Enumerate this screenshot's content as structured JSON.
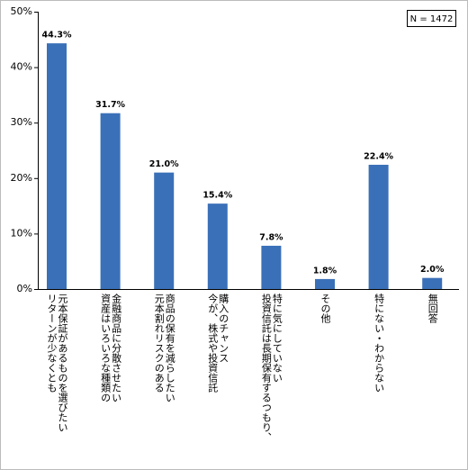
{
  "chart_data": {
    "type": "bar",
    "note": "N = 1472",
    "categories": [
      "元本保証があるものを選びたい\nリターンが少なくとも",
      "金融商品に分散させたい\n資産はいろいろな種類の",
      "商品の保有を減らしたい\n元本割れリスクのある",
      "購入のチャンス\n今が、株式や投資信託",
      "特に気にしていない\n投資信託は長期保有するつもり、",
      "その他",
      "特にない・わからない",
      "無回答"
    ],
    "values": [
      44.3,
      31.7,
      21.0,
      15.4,
      7.8,
      1.8,
      22.4,
      2.0
    ],
    "value_labels": [
      "44.3%",
      "31.7%",
      "21.0%",
      "15.4%",
      "7.8%",
      "1.8%",
      "22.4%",
      "2.0%"
    ],
    "color": "#3a70b8",
    "ylim": [
      0,
      50
    ],
    "yticks": [
      {
        "value": 0,
        "label": "0%"
      },
      {
        "value": 10,
        "label": "10%"
      },
      {
        "value": 20,
        "label": "20%"
      },
      {
        "value": 30,
        "label": "30%"
      },
      {
        "value": 40,
        "label": "40%"
      },
      {
        "value": 50,
        "label": "50%"
      }
    ],
    "grid": false
  }
}
